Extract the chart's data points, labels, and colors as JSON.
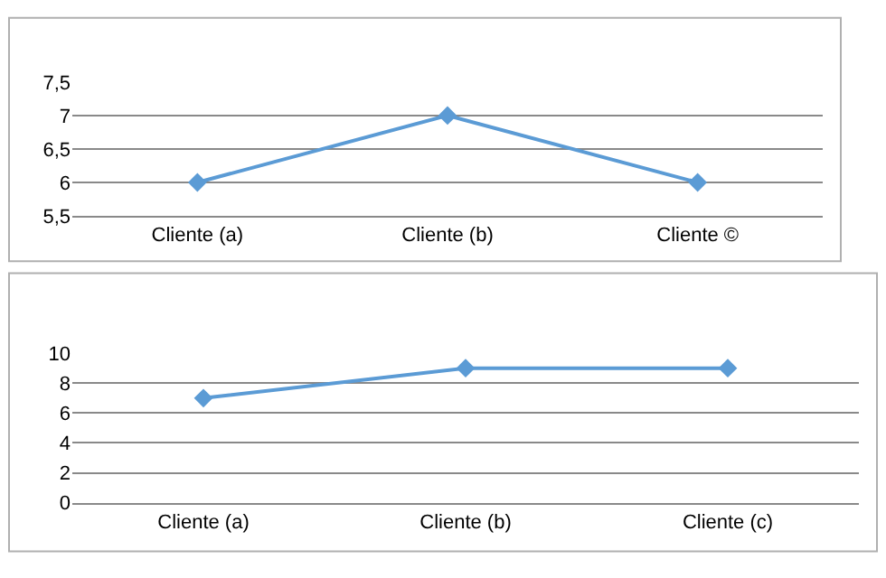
{
  "chart_data": [
    {
      "type": "line",
      "categories": [
        "Cliente (a)",
        "Cliente (b)",
        "Cliente ©"
      ],
      "values": [
        6,
        7,
        6
      ],
      "color": "#5b9bd5",
      "marker": "diamond",
      "grid": "y",
      "ylim": [
        5.5,
        7.5
      ],
      "yticks": [
        {
          "value": 5.5,
          "label": "5,5"
        },
        6,
        {
          "value": 6.5,
          "label": "6,5"
        },
        7,
        {
          "value": 7.5,
          "label": "7,5"
        }
      ]
    },
    {
      "type": "line",
      "categories": [
        "Cliente (a)",
        "Cliente (b)",
        "Cliente (c)"
      ],
      "values": [
        7,
        9,
        9
      ],
      "color": "#5b9bd5",
      "marker": "diamond",
      "grid": "y",
      "ylim": [
        0,
        10
      ],
      "yticks": [
        0,
        2,
        4,
        6,
        8,
        10
      ]
    }
  ]
}
